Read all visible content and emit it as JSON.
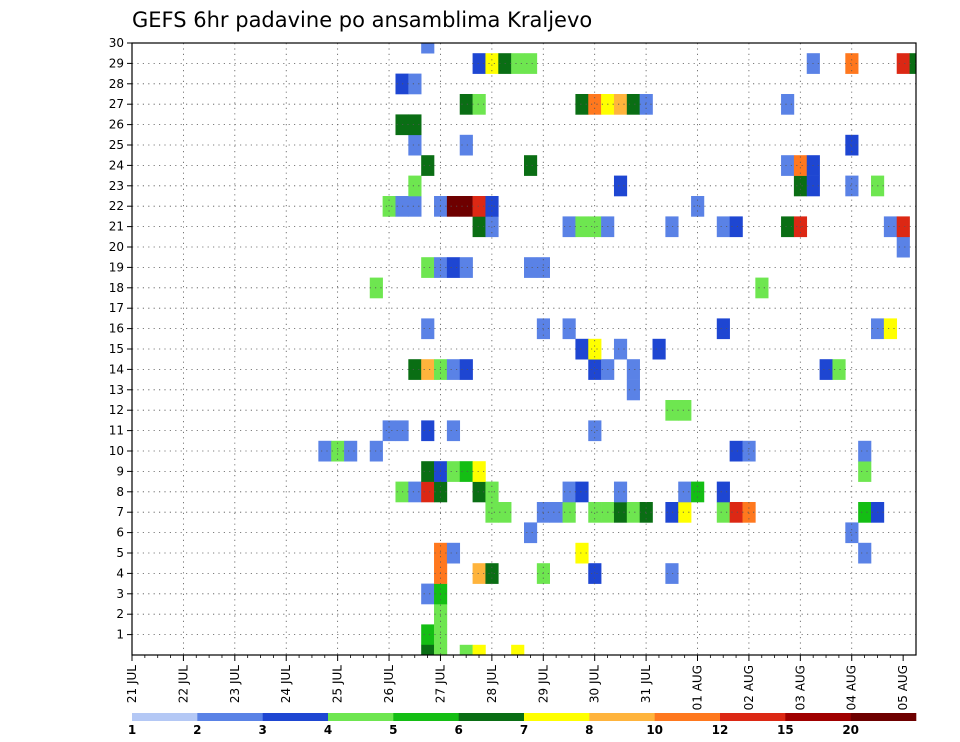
{
  "chart_data": {
    "type": "heatmap",
    "title": "GEFS 6hr padavine po ansamblima Kraljevo",
    "y_ticks": [
      "1",
      "2",
      "3",
      "4",
      "5",
      "6",
      "7",
      "8",
      "9",
      "10",
      "11",
      "12",
      "13",
      "14",
      "15",
      "16",
      "17",
      "18",
      "19",
      "20",
      "21",
      "22",
      "23",
      "24",
      "25",
      "26",
      "27",
      "28",
      "29",
      "30"
    ],
    "x_ticks": [
      "21 JUL",
      "22 JUL",
      "23 JUL",
      "24 JUL",
      "25 JUL",
      "26 JUL",
      "27 JUL",
      "28 JUL",
      "29 JUL",
      "30 JUL",
      "31 JUL",
      "01 AUG",
      "02 AUG",
      "03 AUG",
      "04 AUG",
      "05 AUG"
    ],
    "x_range_steps": [
      0,
      61
    ],
    "y_range": [
      0,
      30
    ],
    "grid": true,
    "legend_position": "bottom",
    "legend": {
      "labels": [
        "1",
        "2",
        "3",
        "4",
        "5",
        "6",
        "7",
        "8",
        "10",
        "12",
        "15",
        "20"
      ],
      "colors": [
        "#b4c8f5",
        "#5a82e6",
        "#1e46d2",
        "#6ee650",
        "#14be14",
        "#0a6e14",
        "#ffff00",
        "#ffb43c",
        "#ff781e",
        "#dc2814",
        "#a00000",
        "#6e0000"
      ]
    },
    "cells": [
      [
        23,
        1,
        4
      ],
      [
        24,
        1,
        3
      ],
      [
        23,
        0,
        5
      ],
      [
        24,
        0,
        3
      ],
      [
        26,
        0,
        3
      ],
      [
        27,
        0,
        6
      ],
      [
        30,
        0,
        6
      ],
      [
        24,
        2,
        3
      ],
      [
        23,
        3,
        1
      ],
      [
        24,
        3,
        4
      ],
      [
        24,
        4,
        8
      ],
      [
        27,
        4,
        7
      ],
      [
        28,
        4,
        5
      ],
      [
        32,
        4,
        3
      ],
      [
        36,
        4,
        2
      ],
      [
        42,
        4,
        1
      ],
      [
        24,
        5,
        8
      ],
      [
        25,
        5,
        1
      ],
      [
        35,
        5,
        6
      ],
      [
        57,
        5,
        1
      ],
      [
        31,
        6,
        1
      ],
      [
        56,
        6,
        1
      ],
      [
        28,
        7,
        3
      ],
      [
        29,
        7,
        3
      ],
      [
        32,
        7,
        1
      ],
      [
        33,
        7,
        1
      ],
      [
        34,
        7,
        3
      ],
      [
        36,
        7,
        3
      ],
      [
        37,
        7,
        3
      ],
      [
        38,
        7,
        5
      ],
      [
        39,
        7,
        3
      ],
      [
        40,
        7,
        5
      ],
      [
        42,
        7,
        2
      ],
      [
        43,
        7,
        6
      ],
      [
        46,
        7,
        3
      ],
      [
        47,
        7,
        9
      ],
      [
        48,
        7,
        8
      ],
      [
        57,
        7,
        4
      ],
      [
        58,
        7,
        2
      ],
      [
        21,
        8,
        3
      ],
      [
        22,
        8,
        1
      ],
      [
        23,
        8,
        9
      ],
      [
        24,
        8,
        5
      ],
      [
        27,
        8,
        5
      ],
      [
        28,
        8,
        3
      ],
      [
        34,
        8,
        1
      ],
      [
        35,
        8,
        2
      ],
      [
        38,
        8,
        1
      ],
      [
        43,
        8,
        1
      ],
      [
        44,
        8,
        4
      ],
      [
        46,
        8,
        2
      ],
      [
        23,
        9,
        5
      ],
      [
        24,
        9,
        2
      ],
      [
        25,
        9,
        3
      ],
      [
        26,
        9,
        4
      ],
      [
        27,
        9,
        6
      ],
      [
        57,
        9,
        3
      ],
      [
        15,
        10,
        1
      ],
      [
        16,
        10,
        3
      ],
      [
        17,
        10,
        1
      ],
      [
        19,
        10,
        1
      ],
      [
        47,
        10,
        2
      ],
      [
        48,
        10,
        1
      ],
      [
        57,
        10,
        1
      ],
      [
        20,
        11,
        1
      ],
      [
        21,
        11,
        1
      ],
      [
        23,
        11,
        2
      ],
      [
        25,
        11,
        1
      ],
      [
        36,
        11,
        1
      ],
      [
        42,
        12,
        3
      ],
      [
        43,
        12,
        3
      ],
      [
        39,
        13,
        1
      ],
      [
        22,
        14,
        5
      ],
      [
        23,
        14,
        7
      ],
      [
        24,
        14,
        3
      ],
      [
        25,
        14,
        1
      ],
      [
        26,
        14,
        2
      ],
      [
        36,
        14,
        2
      ],
      [
        37,
        14,
        1
      ],
      [
        39,
        14,
        1
      ],
      [
        54,
        14,
        2
      ],
      [
        55,
        14,
        3
      ],
      [
        35,
        15,
        2
      ],
      [
        36,
        15,
        6
      ],
      [
        38,
        15,
        1
      ],
      [
        41,
        15,
        2
      ],
      [
        23,
        16,
        1
      ],
      [
        32,
        16,
        1
      ],
      [
        34,
        16,
        1
      ],
      [
        46,
        16,
        2
      ],
      [
        58,
        16,
        1
      ],
      [
        59,
        16,
        6
      ],
      [
        19,
        18,
        3
      ],
      [
        49,
        18,
        3
      ],
      [
        23,
        19,
        3
      ],
      [
        24,
        19,
        1
      ],
      [
        25,
        19,
        2
      ],
      [
        26,
        19,
        1
      ],
      [
        31,
        19,
        1
      ],
      [
        32,
        19,
        1
      ],
      [
        60,
        20,
        1
      ],
      [
        27,
        21,
        5
      ],
      [
        28,
        21,
        1
      ],
      [
        34,
        21,
        1
      ],
      [
        35,
        21,
        3
      ],
      [
        36,
        21,
        3
      ],
      [
        37,
        21,
        1
      ],
      [
        42,
        21,
        1
      ],
      [
        46,
        21,
        1
      ],
      [
        47,
        21,
        2
      ],
      [
        51,
        21,
        5
      ],
      [
        52,
        21,
        9
      ],
      [
        59,
        21,
        1
      ],
      [
        60,
        21,
        9
      ],
      [
        20,
        22,
        3
      ],
      [
        21,
        22,
        1
      ],
      [
        22,
        22,
        1
      ],
      [
        24,
        22,
        1
      ],
      [
        25,
        22,
        11
      ],
      [
        26,
        22,
        11
      ],
      [
        27,
        22,
        9
      ],
      [
        28,
        22,
        2
      ],
      [
        44,
        22,
        1
      ],
      [
        22,
        23,
        3
      ],
      [
        38,
        23,
        2
      ],
      [
        52,
        23,
        5
      ],
      [
        53,
        23,
        2
      ],
      [
        56,
        23,
        1
      ],
      [
        58,
        23,
        3
      ],
      [
        23,
        24,
        5
      ],
      [
        31,
        24,
        5
      ],
      [
        51,
        24,
        1
      ],
      [
        52,
        24,
        8
      ],
      [
        53,
        24,
        2
      ],
      [
        22,
        25,
        1
      ],
      [
        26,
        25,
        1
      ],
      [
        56,
        25,
        2
      ],
      [
        21,
        26,
        5
      ],
      [
        22,
        26,
        5
      ],
      [
        26,
        27,
        5
      ],
      [
        27,
        27,
        3
      ],
      [
        35,
        27,
        5
      ],
      [
        36,
        27,
        8
      ],
      [
        37,
        27,
        6
      ],
      [
        38,
        27,
        7
      ],
      [
        39,
        27,
        5
      ],
      [
        40,
        27,
        1
      ],
      [
        51,
        27,
        1
      ],
      [
        21,
        28,
        2
      ],
      [
        22,
        28,
        1
      ],
      [
        27,
        29,
        2
      ],
      [
        28,
        29,
        6
      ],
      [
        29,
        29,
        5
      ],
      [
        30,
        29,
        3
      ],
      [
        31,
        29,
        3
      ],
      [
        53,
        29,
        1
      ],
      [
        56,
        29,
        8
      ],
      [
        60,
        29,
        9
      ],
      [
        61,
        29,
        5
      ],
      [
        23,
        30,
        1
      ]
    ]
  }
}
